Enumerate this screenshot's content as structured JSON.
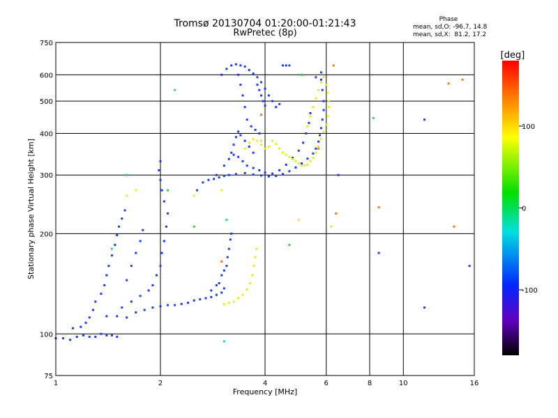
{
  "chart_data": {
    "type": "scatter",
    "title": "Tromsø 20130704 01:20:00-01:21:43",
    "subtitle": "RwPretec (8p)",
    "xlabel": "Frequency [MHz]",
    "ylabel": "Stationary phase Virtual Height [km]",
    "x_scale": "log",
    "y_scale": "log",
    "xlim": [
      1,
      16
    ],
    "ylim": [
      75,
      750
    ],
    "grid": true,
    "x_ticks": [
      1,
      2,
      4,
      6,
      8,
      10,
      16
    ],
    "x_tick_labels": [
      "1",
      "2",
      "4",
      "6",
      "8",
      "10",
      "16"
    ],
    "y_ticks": [
      75,
      100,
      200,
      300,
      400,
      500,
      600,
      750
    ],
    "y_tick_labels": [
      "75",
      "100",
      "200",
      "300",
      "400",
      "500",
      "600",
      "750"
    ],
    "stats": {
      "heading": "Phase",
      "line_o": "mean, sd,O: -96.7, 14.8",
      "line_x": "mean, sd,X:  81.2, 17.2"
    },
    "colorbar": {
      "label": "[deg]",
      "range": [
        -180,
        180
      ],
      "ticks": [
        100,
        0,
        -100
      ],
      "tick_labels": [
        "100",
        "0",
        "-100"
      ]
    },
    "series": [
      {
        "mode": "O",
        "color": "#1a3cf0",
        "phase_deg": -96.7,
        "points": [
          [
            1.0,
            97
          ],
          [
            1.05,
            97
          ],
          [
            1.1,
            96
          ],
          [
            1.15,
            98
          ],
          [
            1.2,
            99
          ],
          [
            1.25,
            98
          ],
          [
            1.3,
            98
          ],
          [
            1.35,
            100
          ],
          [
            1.4,
            99
          ],
          [
            1.45,
            99
          ],
          [
            1.5,
            98
          ],
          [
            1.12,
            104
          ],
          [
            1.18,
            105
          ],
          [
            1.22,
            108
          ],
          [
            1.25,
            112
          ],
          [
            1.28,
            118
          ],
          [
            1.3,
            125
          ],
          [
            1.35,
            132
          ],
          [
            1.38,
            140
          ],
          [
            1.4,
            150
          ],
          [
            1.42,
            160
          ],
          [
            1.45,
            172
          ],
          [
            1.48,
            185
          ],
          [
            1.5,
            198
          ],
          [
            1.52,
            210
          ],
          [
            1.55,
            222
          ],
          [
            1.58,
            235
          ],
          [
            1.4,
            113
          ],
          [
            1.5,
            113
          ],
          [
            1.6,
            112
          ],
          [
            1.7,
            116
          ],
          [
            1.8,
            118
          ],
          [
            1.9,
            120
          ],
          [
            2.0,
            121
          ],
          [
            2.1,
            122
          ],
          [
            2.2,
            122
          ],
          [
            2.3,
            123
          ],
          [
            2.4,
            124
          ],
          [
            2.5,
            126
          ],
          [
            2.6,
            127
          ],
          [
            2.7,
            128
          ],
          [
            2.8,
            129
          ],
          [
            2.9,
            131
          ],
          [
            3.0,
            133
          ],
          [
            3.05,
            137
          ],
          [
            1.55,
            120
          ],
          [
            1.65,
            125
          ],
          [
            1.75,
            130
          ],
          [
            1.85,
            135
          ],
          [
            1.9,
            140
          ],
          [
            1.95,
            150
          ],
          [
            2.0,
            160
          ],
          [
            2.02,
            175
          ],
          [
            2.05,
            190
          ],
          [
            2.08,
            210
          ],
          [
            2.1,
            230
          ],
          [
            2.05,
            250
          ],
          [
            2.02,
            270
          ],
          [
            2.0,
            290
          ],
          [
            1.98,
            310
          ],
          [
            2.0,
            330
          ],
          [
            1.6,
            145
          ],
          [
            1.65,
            160
          ],
          [
            1.7,
            175
          ],
          [
            1.75,
            190
          ],
          [
            1.78,
            205
          ],
          [
            2.55,
            270
          ],
          [
            2.65,
            285
          ],
          [
            2.75,
            290
          ],
          [
            2.85,
            292
          ],
          [
            2.95,
            295
          ],
          [
            3.05,
            298
          ],
          [
            3.15,
            300
          ],
          [
            3.3,
            302
          ],
          [
            3.5,
            304
          ],
          [
            3.7,
            301
          ],
          [
            3.9,
            299
          ],
          [
            4.1,
            297
          ],
          [
            4.3,
            298
          ],
          [
            4.5,
            302
          ],
          [
            4.7,
            308
          ],
          [
            4.9,
            316
          ],
          [
            5.1,
            325
          ],
          [
            5.3,
            336
          ],
          [
            5.5,
            348
          ],
          [
            5.6,
            360
          ],
          [
            5.7,
            378
          ],
          [
            5.75,
            395
          ],
          [
            5.8,
            415
          ],
          [
            5.85,
            440
          ],
          [
            5.9,
            470
          ],
          [
            5.9,
            500
          ],
          [
            5.85,
            540
          ],
          [
            5.8,
            580
          ],
          [
            5.8,
            610
          ],
          [
            2.9,
            300
          ],
          [
            3.05,
            320
          ],
          [
            3.15,
            335
          ],
          [
            3.25,
            345
          ],
          [
            3.35,
            340
          ],
          [
            3.45,
            330
          ],
          [
            3.55,
            320
          ],
          [
            3.7,
            315
          ],
          [
            3.85,
            310
          ],
          [
            4.0,
            305
          ],
          [
            4.2,
            303
          ],
          [
            4.4,
            310
          ],
          [
            4.6,
            322
          ],
          [
            4.8,
            338
          ],
          [
            5.0,
            355
          ],
          [
            5.15,
            375
          ],
          [
            5.25,
            400
          ],
          [
            5.35,
            430
          ],
          [
            5.4,
            460
          ],
          [
            3.2,
            350
          ],
          [
            3.25,
            370
          ],
          [
            3.3,
            390
          ],
          [
            3.35,
            405
          ],
          [
            3.4,
            395
          ],
          [
            3.5,
            380
          ],
          [
            3.6,
            365
          ],
          [
            3.7,
            350
          ],
          [
            3.0,
            600
          ],
          [
            3.1,
            625
          ],
          [
            3.2,
            640
          ],
          [
            3.3,
            645
          ],
          [
            3.4,
            640
          ],
          [
            3.5,
            635
          ],
          [
            3.6,
            620
          ],
          [
            3.7,
            605
          ],
          [
            3.8,
            590
          ],
          [
            3.9,
            570
          ],
          [
            4.0,
            545
          ],
          [
            4.1,
            520
          ],
          [
            4.2,
            500
          ],
          [
            4.3,
            480
          ],
          [
            4.4,
            490
          ],
          [
            4.5,
            640
          ],
          [
            4.6,
            640
          ],
          [
            4.7,
            640
          ],
          [
            3.35,
            600
          ],
          [
            3.4,
            560
          ],
          [
            3.45,
            520
          ],
          [
            3.5,
            480
          ],
          [
            3.55,
            440
          ],
          [
            3.65,
            420
          ],
          [
            3.75,
            410
          ],
          [
            3.85,
            400
          ],
          [
            3.8,
            560
          ],
          [
            3.85,
            540
          ],
          [
            3.9,
            520
          ],
          [
            3.95,
            500
          ],
          [
            4.0,
            485
          ],
          [
            3.0,
            150
          ],
          [
            3.05,
            155
          ],
          [
            3.1,
            160
          ],
          [
            3.12,
            170
          ],
          [
            3.15,
            180
          ],
          [
            3.18,
            192
          ],
          [
            3.2,
            200
          ],
          [
            2.8,
            135
          ],
          [
            2.9,
            140
          ],
          [
            2.95,
            142
          ],
          [
            8.5,
            175
          ],
          [
            11.5,
            440
          ],
          [
            11.5,
            120
          ],
          [
            15.5,
            160
          ],
          [
            5.6,
            590
          ],
          [
            6.5,
            300
          ]
        ]
      },
      {
        "mode": "X",
        "color": "#dfee1c",
        "phase_deg": 81.2,
        "points": [
          [
            3.05,
            123
          ],
          [
            3.15,
            124
          ],
          [
            3.25,
            125
          ],
          [
            3.35,
            128
          ],
          [
            3.45,
            131
          ],
          [
            3.55,
            136
          ],
          [
            3.62,
            142
          ],
          [
            3.68,
            150
          ],
          [
            3.72,
            160
          ],
          [
            3.75,
            170
          ],
          [
            3.78,
            180
          ],
          [
            3.5,
            360
          ],
          [
            3.6,
            375
          ],
          [
            3.7,
            385
          ],
          [
            3.8,
            380
          ],
          [
            3.9,
            370
          ],
          [
            4.0,
            360
          ],
          [
            4.1,
            365
          ],
          [
            4.2,
            380
          ],
          [
            4.3,
            372
          ],
          [
            4.4,
            360
          ],
          [
            4.5,
            350
          ],
          [
            4.6,
            345
          ],
          [
            4.7,
            340
          ],
          [
            4.8,
            335
          ],
          [
            4.9,
            330
          ],
          [
            5.0,
            325
          ],
          [
            5.1,
            320
          ],
          [
            5.2,
            320
          ],
          [
            5.3,
            322
          ],
          [
            5.4,
            330
          ],
          [
            5.5,
            338
          ],
          [
            5.6,
            350
          ],
          [
            5.7,
            365
          ],
          [
            5.8,
            385
          ],
          [
            5.9,
            405
          ],
          [
            6.0,
            425
          ],
          [
            6.05,
            450
          ],
          [
            6.1,
            480
          ],
          [
            6.1,
            500
          ],
          [
            5.3,
            420
          ],
          [
            5.4,
            450
          ],
          [
            5.5,
            480
          ],
          [
            5.6,
            510
          ],
          [
            5.7,
            540
          ],
          [
            5.8,
            570
          ],
          [
            5.9,
            590
          ],
          [
            6.0,
            560
          ],
          [
            6.05,
            530
          ],
          [
            1.6,
            260
          ],
          [
            1.7,
            270
          ],
          [
            2.5,
            260
          ],
          [
            3.0,
            270
          ],
          [
            5.0,
            220
          ],
          [
            6.2,
            210
          ],
          [
            3.9,
            380
          ]
        ]
      },
      {
        "mode": "other",
        "color": "#ff7a00",
        "phase_deg": 150,
        "points": [
          [
            3.0,
            165
          ],
          [
            6.3,
            640
          ],
          [
            6.4,
            230
          ],
          [
            8.5,
            240
          ],
          [
            14.0,
            210
          ],
          [
            13.5,
            565
          ],
          [
            14.8,
            580
          ],
          [
            5.7,
            360
          ],
          [
            3.9,
            455
          ]
        ]
      },
      {
        "mode": "other",
        "color": "#25c8d8",
        "phase_deg": -30,
        "points": [
          [
            1.45,
            180
          ],
          [
            2.2,
            540
          ],
          [
            3.1,
            220
          ],
          [
            8.2,
            445
          ],
          [
            3.05,
            95
          ]
        ]
      },
      {
        "mode": "other",
        "color": "#30d040",
        "phase_deg": 20,
        "points": [
          [
            1.6,
            300
          ],
          [
            2.1,
            270
          ],
          [
            4.7,
            185
          ],
          [
            5.1,
            600
          ],
          [
            2.5,
            210
          ]
        ]
      }
    ]
  }
}
